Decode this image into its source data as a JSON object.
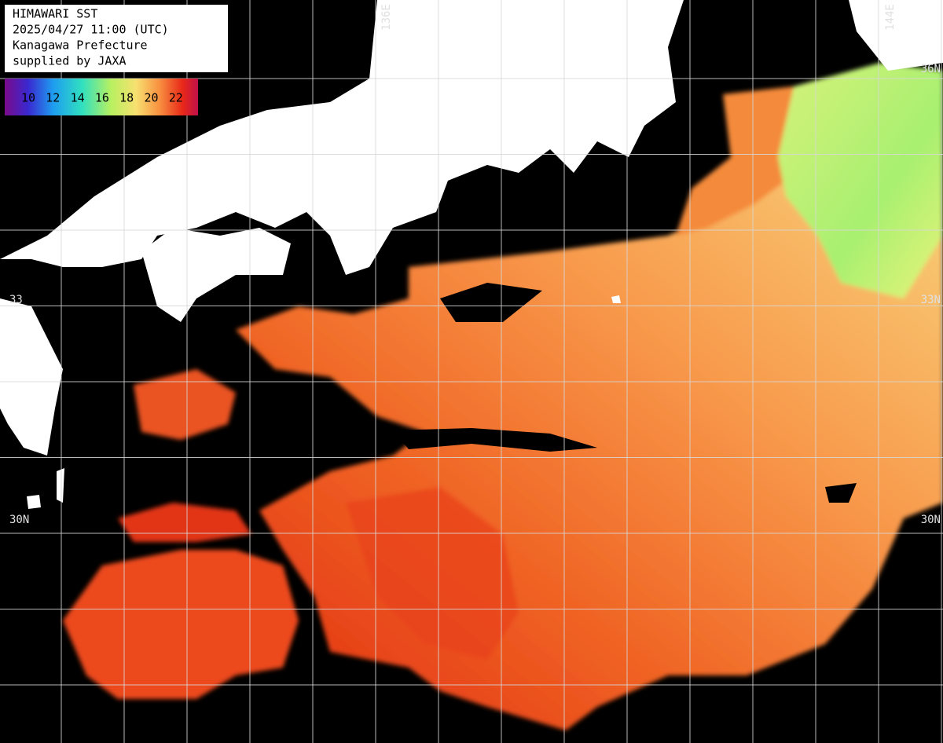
{
  "header": {
    "lines": [
      "HIMAWARI SST",
      "2025/04/27 11:00 (UTC)",
      "Kanagawa Prefecture",
      "supplied by JAXA"
    ]
  },
  "legend": {
    "labels": [
      10,
      12,
      14,
      16,
      18,
      20,
      22
    ]
  },
  "grid_labels": {
    "longitude": [
      "136E",
      "144E"
    ],
    "latitude_left": [
      "33",
      "30N"
    ],
    "latitude_right": [
      "36N",
      "33N",
      "30N"
    ]
  }
}
